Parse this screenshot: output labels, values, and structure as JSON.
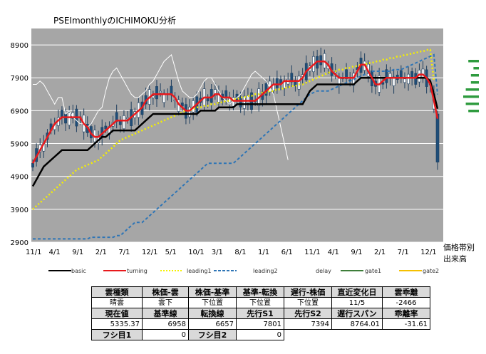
{
  "title": "PSEImonthlyのICHIMOKU分析",
  "side_labels": [
    "価格帯別",
    "出来高"
  ],
  "colors": {
    "plot_bg": "#a6a6a6",
    "grid": "#ffffff",
    "basic": "#000000",
    "turning": "#e8191c",
    "leading1": "#f5f000",
    "leading2": "#2e75b6",
    "delay": "#ffffff",
    "gate1": "#3e7e3a",
    "gate2": "#f5c000",
    "candle_up": "#ffffff",
    "candle_down": "#1f4e79",
    "volume_bars": "#2e9b3e"
  },
  "chart_data": {
    "type": "line",
    "ylim": [
      2900,
      9400
    ],
    "yticks": [
      2900,
      3900,
      4900,
      5900,
      6900,
      7900,
      8900
    ],
    "xticks": [
      "11/1",
      "4/1",
      "9/1",
      "2/1",
      "7/1",
      "12/1",
      "5/1",
      "10/1",
      "3/1",
      "8/1",
      "1/1",
      "6/1",
      "11/1",
      "4/1",
      "9/1",
      "2/1",
      "7/1",
      "12/1"
    ],
    "legend": [
      "basic",
      "turning",
      "leading1",
      "leading2",
      "delay",
      "gate1",
      "gate2"
    ],
    "series": {
      "basic": [
        4600,
        4800,
        5000,
        5200,
        5300,
        5400,
        5500,
        5600,
        5700,
        5700,
        5700,
        5700,
        5700,
        5700,
        5700,
        5700,
        5800,
        5900,
        6000,
        6100,
        6100,
        6200,
        6300,
        6300,
        6300,
        6300,
        6300,
        6300,
        6300,
        6400,
        6500,
        6600,
        6700,
        6800,
        6800,
        6800,
        6800,
        6800,
        6800,
        6800,
        6800,
        6800,
        6800,
        6800,
        6800,
        6800,
        6900,
        6900,
        6900,
        6900,
        6900,
        7000,
        7000,
        7000,
        7000,
        7000,
        7100,
        7100,
        7100,
        7100,
        7100,
        7100,
        7100,
        7100,
        7100,
        7100,
        7100,
        7100,
        7100,
        7100,
        7100,
        7100,
        7100,
        7100,
        7100,
        7300,
        7500,
        7600,
        7700,
        7700,
        7700,
        7700,
        7700,
        7700,
        7700,
        7700,
        7700,
        7700,
        7700,
        7800,
        7900,
        7900,
        7900,
        7900,
        7900,
        7900,
        7900,
        7900,
        7900,
        7900,
        7900,
        7900,
        7900,
        7900,
        7900,
        7900,
        7900,
        7900,
        7900,
        7800,
        7400,
        6958
      ],
      "turning": [
        5300,
        5500,
        5700,
        5900,
        6100,
        6300,
        6500,
        6600,
        6700,
        6700,
        6700,
        6700,
        6700,
        6700,
        6500,
        6400,
        6200,
        6100,
        6100,
        6200,
        6300,
        6400,
        6500,
        6600,
        6600,
        6600,
        6600,
        6700,
        6800,
        6900,
        7000,
        7200,
        7300,
        7400,
        7400,
        7400,
        7400,
        7400,
        7400,
        7300,
        7100,
        7000,
        6900,
        6900,
        7000,
        7100,
        7200,
        7300,
        7300,
        7300,
        7400,
        7400,
        7300,
        7300,
        7300,
        7200,
        7200,
        7200,
        7200,
        7200,
        7200,
        7200,
        7300,
        7400,
        7500,
        7600,
        7700,
        7700,
        7700,
        7800,
        7800,
        7800,
        7800,
        7800,
        7900,
        8100,
        8200,
        8300,
        8400,
        8400,
        8400,
        8300,
        8100,
        8000,
        7900,
        7900,
        7900,
        7900,
        7900,
        8100,
        8300,
        8300,
        8100,
        7900,
        7700,
        7700,
        7800,
        7900,
        7900,
        7900,
        7900,
        7900,
        7900,
        7900,
        7900,
        7900,
        8000,
        8000,
        7900,
        7700,
        7200,
        6657
      ],
      "leading1": [
        3900,
        4000,
        4100,
        4200,
        4300,
        4400,
        4500,
        4600,
        4700,
        4800,
        4900,
        5000,
        5100,
        5150,
        5200,
        5250,
        5300,
        5350,
        5400,
        5500,
        5600,
        5700,
        5800,
        5900,
        6000,
        6050,
        6100,
        6150,
        6200,
        6250,
        6300,
        6350,
        6400,
        6450,
        6500,
        6550,
        6600,
        6650,
        6700,
        6750,
        6800,
        6850,
        6900,
        6900,
        6950,
        7000,
        7000,
        7050,
        7050,
        7100,
        7100,
        7150,
        7150,
        7200,
        7200,
        7250,
        7250,
        7300,
        7300,
        7350,
        7350,
        7400,
        7400,
        7450,
        7450,
        7500,
        7500,
        7550,
        7550,
        7600,
        7600,
        7650,
        7650,
        7700,
        7700,
        7750,
        7800,
        7850,
        7900,
        7950,
        8000,
        8050,
        8100,
        8100,
        8150,
        8150,
        8200,
        8200,
        8250,
        8250,
        8300,
        8300,
        8350,
        8350,
        8400,
        8400,
        8450,
        8450,
        8500,
        8500,
        8550,
        8550,
        8600,
        8600,
        8650,
        8650,
        8700,
        8700,
        8750,
        8750,
        7801
      ],
      "leading2": [
        3000,
        3000,
        3000,
        3000,
        3000,
        3000,
        3000,
        3000,
        3000,
        3000,
        3000,
        3000,
        3000,
        3000,
        3000,
        3000,
        3050,
        3050,
        3050,
        3050,
        3050,
        3050,
        3050,
        3100,
        3100,
        3200,
        3300,
        3400,
        3500,
        3500,
        3500,
        3600,
        3700,
        3800,
        3900,
        4000,
        4100,
        4200,
        4300,
        4400,
        4500,
        4600,
        4700,
        4800,
        4900,
        5000,
        5100,
        5200,
        5300,
        5300,
        5300,
        5300,
        5300,
        5300,
        5300,
        5300,
        5400,
        5500,
        5600,
        5700,
        5800,
        5900,
        6000,
        6100,
        6200,
        6300,
        6400,
        6500,
        6600,
        6700,
        6800,
        6900,
        7000,
        7100,
        7200,
        7300,
        7400,
        7450,
        7500,
        7500,
        7500,
        7500,
        7550,
        7600,
        7650,
        7700,
        7750,
        7800,
        7850,
        7900,
        7950,
        8000,
        8050,
        8100,
        8100,
        8100,
        8100,
        8100,
        8100,
        8150,
        8150,
        8150,
        8200,
        8250,
        8300,
        8350,
        8400,
        8450,
        8500,
        8550,
        8600,
        7394
      ],
      "delay": [
        7700,
        7700,
        7800,
        7700,
        7500,
        7300,
        7100,
        7300,
        7300,
        6800,
        6900,
        6700,
        6600,
        6500,
        6500,
        6400,
        6500,
        6700,
        6900,
        7000,
        7500,
        7900,
        8100,
        8200,
        8000,
        7800,
        7600,
        7400,
        7300,
        7300,
        7400,
        7500,
        7700,
        7800,
        8000,
        8200,
        8400,
        8500,
        8600,
        8200,
        7800,
        7500,
        7400,
        7300,
        7300,
        7400,
        7600,
        7800,
        7900,
        7900,
        7700,
        7500,
        7300,
        7200,
        7100,
        7200,
        7300,
        7400,
        7600,
        7800,
        8000,
        8100,
        8000,
        7900,
        7800,
        7600,
        7400,
        6900,
        6400,
        5900,
        5400
      ]
    },
    "current": {
      "close": 5335.37,
      "low": 5100,
      "open": 6800
    }
  },
  "volume_profile": [
    3,
    1,
    2,
    2,
    4,
    5,
    4,
    3
  ],
  "table": {
    "row1_headers": [
      "雲種類",
      "株価-雲",
      "株価-基準",
      "基準-転換",
      "遅行-株価",
      "直近変化日",
      "雲乖離"
    ],
    "row1_values": [
      "晴雲",
      "雲下",
      "下位置",
      "下位置",
      "下位置",
      "11/5",
      "-2466"
    ],
    "row2_headers": [
      "現在値",
      "基準線",
      "転換線",
      "先行S1",
      "先行S2",
      "遅行スパン",
      "乖離率"
    ],
    "row2_values": [
      "5335.37",
      "6958",
      "6657",
      "7801",
      "7394",
      "8764.01",
      "-31.61"
    ],
    "row3_headers": [
      "フシ目1",
      "フシ目2"
    ],
    "row3_values": [
      "0",
      "0"
    ]
  }
}
